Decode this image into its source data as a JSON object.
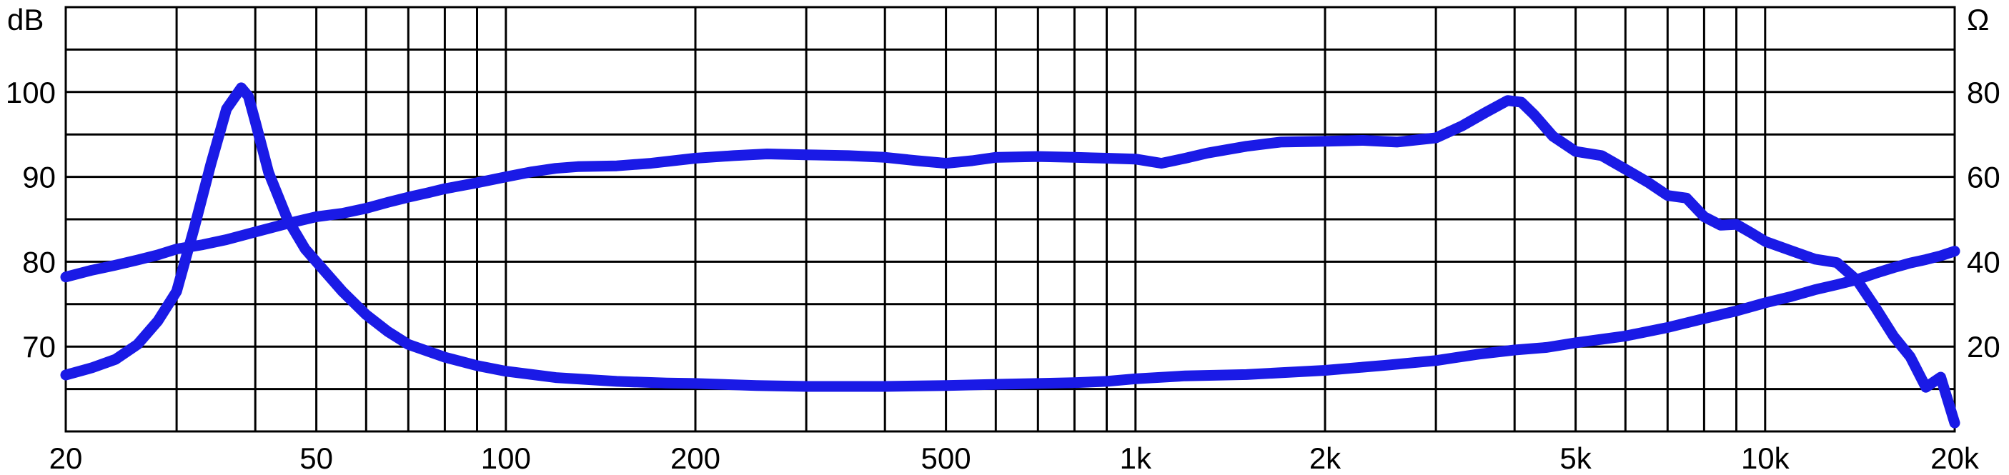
{
  "chart_data": {
    "type": "line",
    "title": "",
    "left_unit_label": "dB",
    "right_unit_label": "Ω",
    "x_scale": "log",
    "xlim": [
      20,
      20000
    ],
    "ylim_left": [
      60,
      110
    ],
    "ylim_right": [
      0,
      100
    ],
    "grid": true,
    "x_ticks": [
      {
        "value": 20,
        "label": "20"
      },
      {
        "value": 50,
        "label": "50"
      },
      {
        "value": 100,
        "label": "100"
      },
      {
        "value": 200,
        "label": "200"
      },
      {
        "value": 500,
        "label": "500"
      },
      {
        "value": 1000,
        "label": "1k"
      },
      {
        "value": 2000,
        "label": "2k"
      },
      {
        "value": 5000,
        "label": "5k"
      },
      {
        "value": 10000,
        "label": "10k"
      },
      {
        "value": 20000,
        "label": "20k"
      }
    ],
    "y_left_ticks": [
      {
        "value": 100,
        "label": "100"
      },
      {
        "value": 90,
        "label": "90"
      },
      {
        "value": 80,
        "label": "80"
      },
      {
        "value": 70,
        "label": "70"
      }
    ],
    "y_right_ticks": [
      {
        "value": 80,
        "label": "80"
      },
      {
        "value": 60,
        "label": "60"
      },
      {
        "value": 40,
        "label": "40"
      },
      {
        "value": 20,
        "label": "20"
      }
    ],
    "series": [
      {
        "axis": "left",
        "color": "#1a1ae6",
        "points": [
          [
            20,
            78.2
          ],
          [
            22,
            79.0
          ],
          [
            24,
            79.6
          ],
          [
            26,
            80.2
          ],
          [
            28,
            80.8
          ],
          [
            30,
            81.5
          ],
          [
            33,
            82.0
          ],
          [
            36,
            82.6
          ],
          [
            40,
            83.5
          ],
          [
            45,
            84.5
          ],
          [
            50,
            85.3
          ],
          [
            55,
            85.7
          ],
          [
            60,
            86.3
          ],
          [
            65,
            87.0
          ],
          [
            70,
            87.6
          ],
          [
            75,
            88.1
          ],
          [
            80,
            88.6
          ],
          [
            90,
            89.3
          ],
          [
            100,
            90.0
          ],
          [
            110,
            90.6
          ],
          [
            120,
            91.0
          ],
          [
            130,
            91.2
          ],
          [
            150,
            91.3
          ],
          [
            170,
            91.6
          ],
          [
            200,
            92.2
          ],
          [
            230,
            92.5
          ],
          [
            260,
            92.7
          ],
          [
            300,
            92.6
          ],
          [
            350,
            92.5
          ],
          [
            400,
            92.3
          ],
          [
            450,
            91.9
          ],
          [
            500,
            91.6
          ],
          [
            550,
            91.9
          ],
          [
            600,
            92.3
          ],
          [
            700,
            92.4
          ],
          [
            800,
            92.3
          ],
          [
            900,
            92.2
          ],
          [
            1000,
            92.1
          ],
          [
            1100,
            91.6
          ],
          [
            1200,
            92.2
          ],
          [
            1300,
            92.8
          ],
          [
            1500,
            93.6
          ],
          [
            1700,
            94.1
          ],
          [
            2000,
            94.2
          ],
          [
            2300,
            94.3
          ],
          [
            2600,
            94.1
          ],
          [
            3000,
            94.6
          ],
          [
            3300,
            96.0
          ],
          [
            3600,
            97.6
          ],
          [
            3900,
            99.0
          ],
          [
            4100,
            98.8
          ],
          [
            4300,
            97.3
          ],
          [
            4600,
            94.8
          ],
          [
            5000,
            93.0
          ],
          [
            5500,
            92.5
          ],
          [
            6000,
            90.9
          ],
          [
            6500,
            89.4
          ],
          [
            7000,
            87.8
          ],
          [
            7500,
            87.5
          ],
          [
            8000,
            85.3
          ],
          [
            8500,
            84.3
          ],
          [
            9000,
            84.4
          ],
          [
            9500,
            83.4
          ],
          [
            10000,
            82.4
          ],
          [
            11000,
            81.3
          ],
          [
            12000,
            80.3
          ],
          [
            13000,
            79.9
          ],
          [
            14000,
            77.8
          ],
          [
            15000,
            74.5
          ],
          [
            16000,
            71.2
          ],
          [
            17000,
            68.8
          ],
          [
            18000,
            65.2
          ],
          [
            19000,
            66.4
          ],
          [
            20000,
            61.0
          ]
        ]
      },
      {
        "axis": "right",
        "color": "#1a1ae6",
        "points": [
          [
            20,
            13.3
          ],
          [
            22,
            15.0
          ],
          [
            24,
            17.0
          ],
          [
            26,
            20.5
          ],
          [
            28,
            26.0
          ],
          [
            30,
            33.0
          ],
          [
            32,
            48.0
          ],
          [
            34,
            63.0
          ],
          [
            36,
            76.0
          ],
          [
            38,
            81.0
          ],
          [
            39,
            79.0
          ],
          [
            40,
            73.0
          ],
          [
            42,
            61.0
          ],
          [
            45,
            50.0
          ],
          [
            48,
            43.0
          ],
          [
            50,
            40.0
          ],
          [
            55,
            33.0
          ],
          [
            60,
            27.5
          ],
          [
            65,
            23.5
          ],
          [
            70,
            20.5
          ],
          [
            80,
            17.5
          ],
          [
            90,
            15.5
          ],
          [
            100,
            14.2
          ],
          [
            120,
            12.7
          ],
          [
            150,
            11.8
          ],
          [
            180,
            11.4
          ],
          [
            200,
            11.3
          ],
          [
            250,
            10.8
          ],
          [
            300,
            10.6
          ],
          [
            400,
            10.6
          ],
          [
            500,
            10.8
          ],
          [
            600,
            11.1
          ],
          [
            700,
            11.3
          ],
          [
            800,
            11.5
          ],
          [
            900,
            11.8
          ],
          [
            1000,
            12.4
          ],
          [
            1200,
            13.1
          ],
          [
            1500,
            13.4
          ],
          [
            2000,
            14.4
          ],
          [
            2500,
            15.6
          ],
          [
            3000,
            16.7
          ],
          [
            3500,
            18.2
          ],
          [
            4000,
            19.2
          ],
          [
            4500,
            19.8
          ],
          [
            5000,
            20.9
          ],
          [
            6000,
            22.5
          ],
          [
            7000,
            24.5
          ],
          [
            8000,
            26.6
          ],
          [
            9000,
            28.4
          ],
          [
            10000,
            30.3
          ],
          [
            11000,
            31.8
          ],
          [
            12000,
            33.4
          ],
          [
            13000,
            34.6
          ],
          [
            14000,
            35.8
          ],
          [
            15000,
            37.3
          ],
          [
            16000,
            38.6
          ],
          [
            17000,
            39.7
          ],
          [
            18000,
            40.5
          ],
          [
            19000,
            41.4
          ],
          [
            20000,
            42.5
          ]
        ]
      }
    ]
  }
}
